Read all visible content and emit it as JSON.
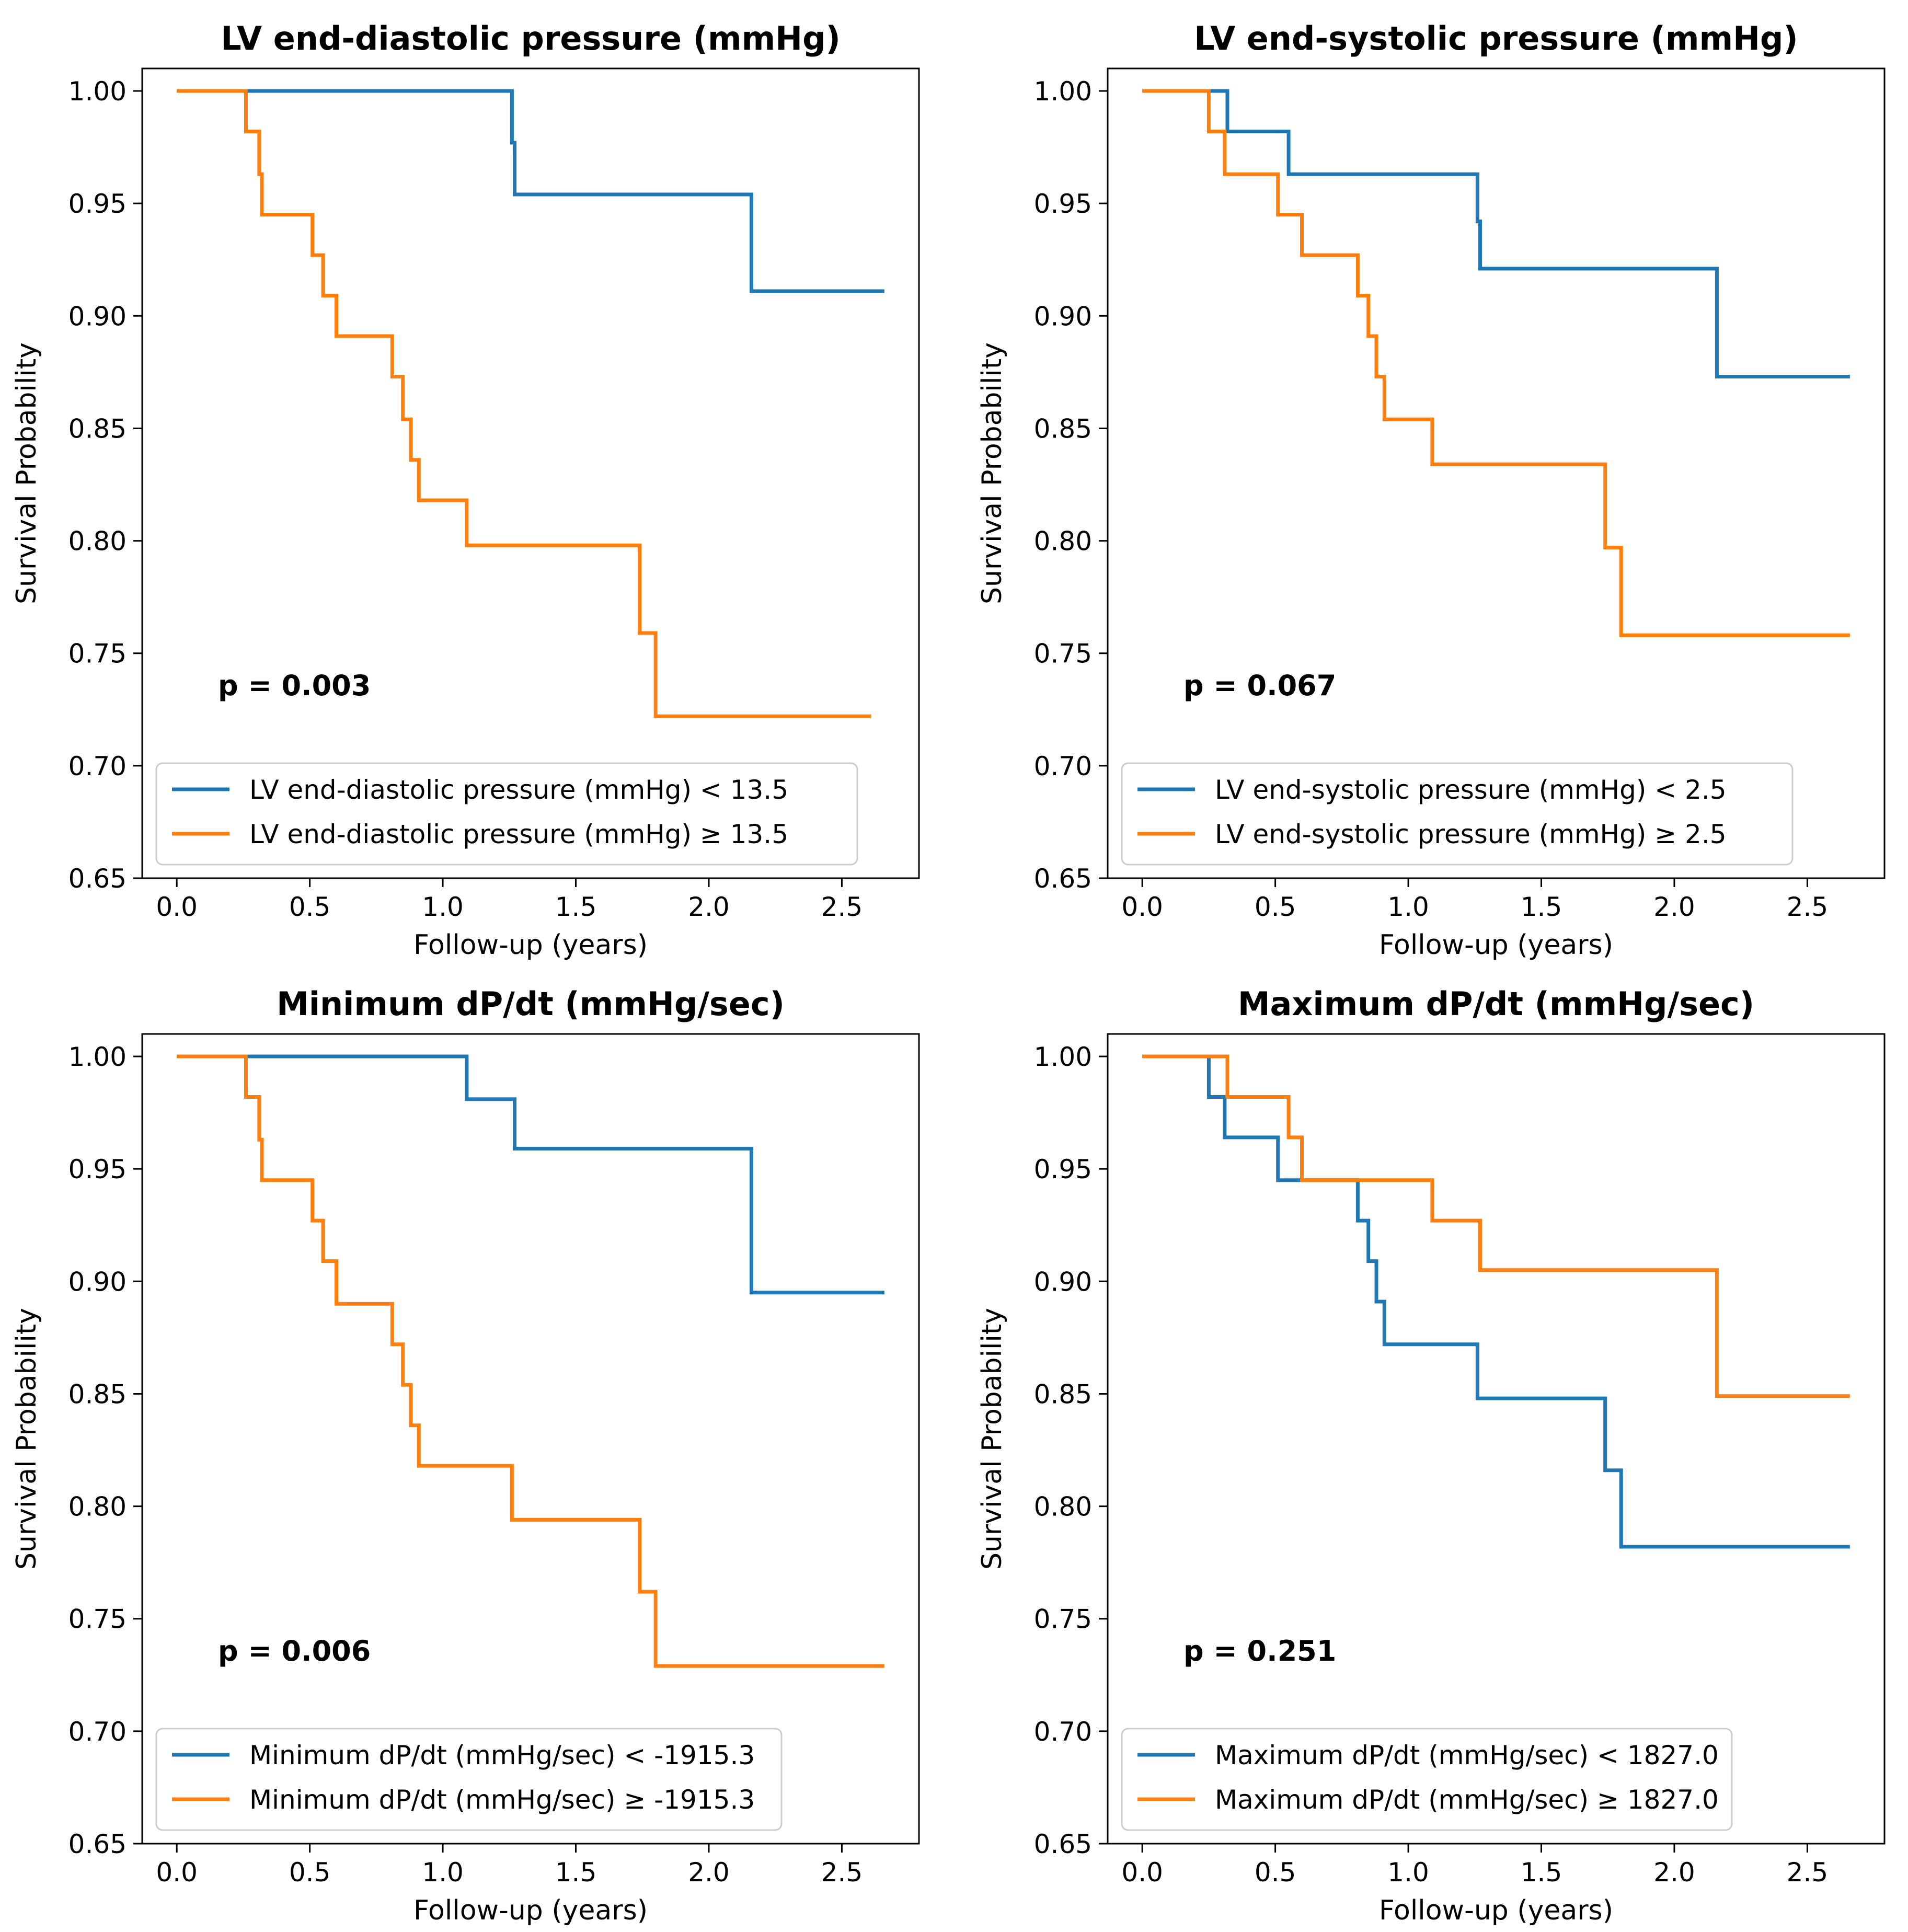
{
  "colors": {
    "series_low": "#1f77b4",
    "series_high": "#ff7f0e"
  },
  "chart_data": [
    {
      "type": "line",
      "step": "post",
      "title": "LV end-diastolic pressure (mmHg)",
      "xlabel": "Follow-up (years)",
      "ylabel": "Survival Probability",
      "xlim": [
        -0.13,
        2.79
      ],
      "ylim": [
        0.65,
        1.01
      ],
      "xticks": [
        0.0,
        0.5,
        1.0,
        1.5,
        2.0,
        2.5
      ],
      "xtick_labels": [
        "0.0",
        "0.5",
        "1.0",
        "1.5",
        "2.0",
        "2.5"
      ],
      "yticks": [
        0.65,
        0.7,
        0.75,
        0.8,
        0.85,
        0.9,
        0.95,
        1.0
      ],
      "ytick_labels": [
        "0.65",
        "0.70",
        "0.75",
        "0.80",
        "0.85",
        "0.90",
        "0.95",
        "1.00"
      ],
      "annotation": "p = 0.003",
      "legend_loc": "lower-left",
      "series": [
        {
          "name": "LV end-diastolic pressure (mmHg) < 13.5",
          "x": [
            0,
            1.26,
            1.27,
            2.16,
            2.66
          ],
          "y": [
            1.0,
            0.977,
            0.954,
            0.911,
            0.911
          ]
        },
        {
          "name": "LV end-diastolic pressure (mmHg) ≥ 13.5",
          "x": [
            0,
            0.26,
            0.31,
            0.32,
            0.51,
            0.55,
            0.6,
            0.81,
            0.85,
            0.88,
            0.91,
            1.09,
            1.74,
            1.8,
            2.61
          ],
          "y": [
            1.0,
            0.982,
            0.963,
            0.945,
            0.927,
            0.909,
            0.891,
            0.873,
            0.854,
            0.836,
            0.818,
            0.798,
            0.759,
            0.722,
            0.722
          ]
        }
      ]
    },
    {
      "type": "line",
      "step": "post",
      "title": "LV end-systolic pressure (mmHg)",
      "xlabel": "Follow-up (years)",
      "ylabel": "Survival Probability",
      "xlim": [
        -0.13,
        2.79
      ],
      "ylim": [
        0.65,
        1.01
      ],
      "xticks": [
        0.0,
        0.5,
        1.0,
        1.5,
        2.0,
        2.5
      ],
      "xtick_labels": [
        "0.0",
        "0.5",
        "1.0",
        "1.5",
        "2.0",
        "2.5"
      ],
      "yticks": [
        0.65,
        0.7,
        0.75,
        0.8,
        0.85,
        0.9,
        0.95,
        1.0
      ],
      "ytick_labels": [
        "0.65",
        "0.70",
        "0.75",
        "0.80",
        "0.85",
        "0.90",
        "0.95",
        "1.00"
      ],
      "annotation": "p = 0.067",
      "legend_loc": "lower-left",
      "series": [
        {
          "name": "LV end-systolic pressure (mmHg) < 2.5",
          "x": [
            0,
            0.32,
            0.55,
            1.26,
            1.27,
            2.16,
            2.66
          ],
          "y": [
            1.0,
            0.982,
            0.963,
            0.942,
            0.921,
            0.873,
            0.873
          ]
        },
        {
          "name": "LV end-systolic pressure (mmHg) ≥ 2.5",
          "x": [
            0,
            0.25,
            0.31,
            0.51,
            0.6,
            0.81,
            0.85,
            0.88,
            0.91,
            1.09,
            1.74,
            1.8,
            2.66
          ],
          "y": [
            1.0,
            0.982,
            0.963,
            0.945,
            0.927,
            0.909,
            0.891,
            0.873,
            0.854,
            0.834,
            0.797,
            0.758,
            0.758
          ]
        }
      ]
    },
    {
      "type": "line",
      "step": "post",
      "title": "Minimum dP/dt (mmHg/sec)",
      "xlabel": "Follow-up (years)",
      "ylabel": "Survival Probability",
      "xlim": [
        -0.13,
        2.79
      ],
      "ylim": [
        0.65,
        1.01
      ],
      "xticks": [
        0.0,
        0.5,
        1.0,
        1.5,
        2.0,
        2.5
      ],
      "xtick_labels": [
        "0.0",
        "0.5",
        "1.0",
        "1.5",
        "2.0",
        "2.5"
      ],
      "yticks": [
        0.65,
        0.7,
        0.75,
        0.8,
        0.85,
        0.9,
        0.95,
        1.0
      ],
      "ytick_labels": [
        "0.65",
        "0.70",
        "0.75",
        "0.80",
        "0.85",
        "0.90",
        "0.95",
        "1.00"
      ],
      "annotation": "p = 0.006",
      "legend_loc": "lower-left",
      "series": [
        {
          "name": "Minimum dP/dt (mmHg/sec) < -1915.3",
          "x": [
            0,
            1.09,
            1.27,
            2.16,
            2.66
          ],
          "y": [
            1.0,
            0.981,
            0.959,
            0.895,
            0.895
          ]
        },
        {
          "name": "Minimum dP/dt (mmHg/sec) ≥ -1915.3",
          "x": [
            0,
            0.26,
            0.31,
            0.32,
            0.51,
            0.55,
            0.6,
            0.81,
            0.85,
            0.88,
            0.91,
            1.26,
            1.74,
            1.8,
            2.66
          ],
          "y": [
            1.0,
            0.982,
            0.963,
            0.945,
            0.927,
            0.909,
            0.89,
            0.872,
            0.854,
            0.836,
            0.818,
            0.794,
            0.762,
            0.729,
            0.729
          ]
        }
      ]
    },
    {
      "type": "line",
      "step": "post",
      "title": "Maximum dP/dt (mmHg/sec)",
      "xlabel": "Follow-up (years)",
      "ylabel": "Survival Probability",
      "xlim": [
        -0.13,
        2.79
      ],
      "ylim": [
        0.65,
        1.01
      ],
      "xticks": [
        0.0,
        0.5,
        1.0,
        1.5,
        2.0,
        2.5
      ],
      "xtick_labels": [
        "0.0",
        "0.5",
        "1.0",
        "1.5",
        "2.0",
        "2.5"
      ],
      "yticks": [
        0.65,
        0.7,
        0.75,
        0.8,
        0.85,
        0.9,
        0.95,
        1.0
      ],
      "ytick_labels": [
        "0.65",
        "0.70",
        "0.75",
        "0.80",
        "0.85",
        "0.90",
        "0.95",
        "1.00"
      ],
      "annotation": "p = 0.251",
      "legend_loc": "lower-left",
      "series": [
        {
          "name": "Maximum dP/dt (mmHg/sec) < 1827.0",
          "x": [
            0,
            0.25,
            0.31,
            0.51,
            0.81,
            0.85,
            0.88,
            0.91,
            1.26,
            1.74,
            1.8,
            2.66
          ],
          "y": [
            1.0,
            0.982,
            0.964,
            0.945,
            0.927,
            0.909,
            0.891,
            0.872,
            0.848,
            0.816,
            0.782,
            0.782
          ]
        },
        {
          "name": "Maximum dP/dt (mmHg/sec) ≥ 1827.0",
          "x": [
            0,
            0.32,
            0.55,
            0.6,
            1.09,
            1.27,
            2.16,
            2.66
          ],
          "y": [
            1.0,
            0.982,
            0.964,
            0.945,
            0.927,
            0.905,
            0.849,
            0.849
          ]
        }
      ]
    }
  ]
}
